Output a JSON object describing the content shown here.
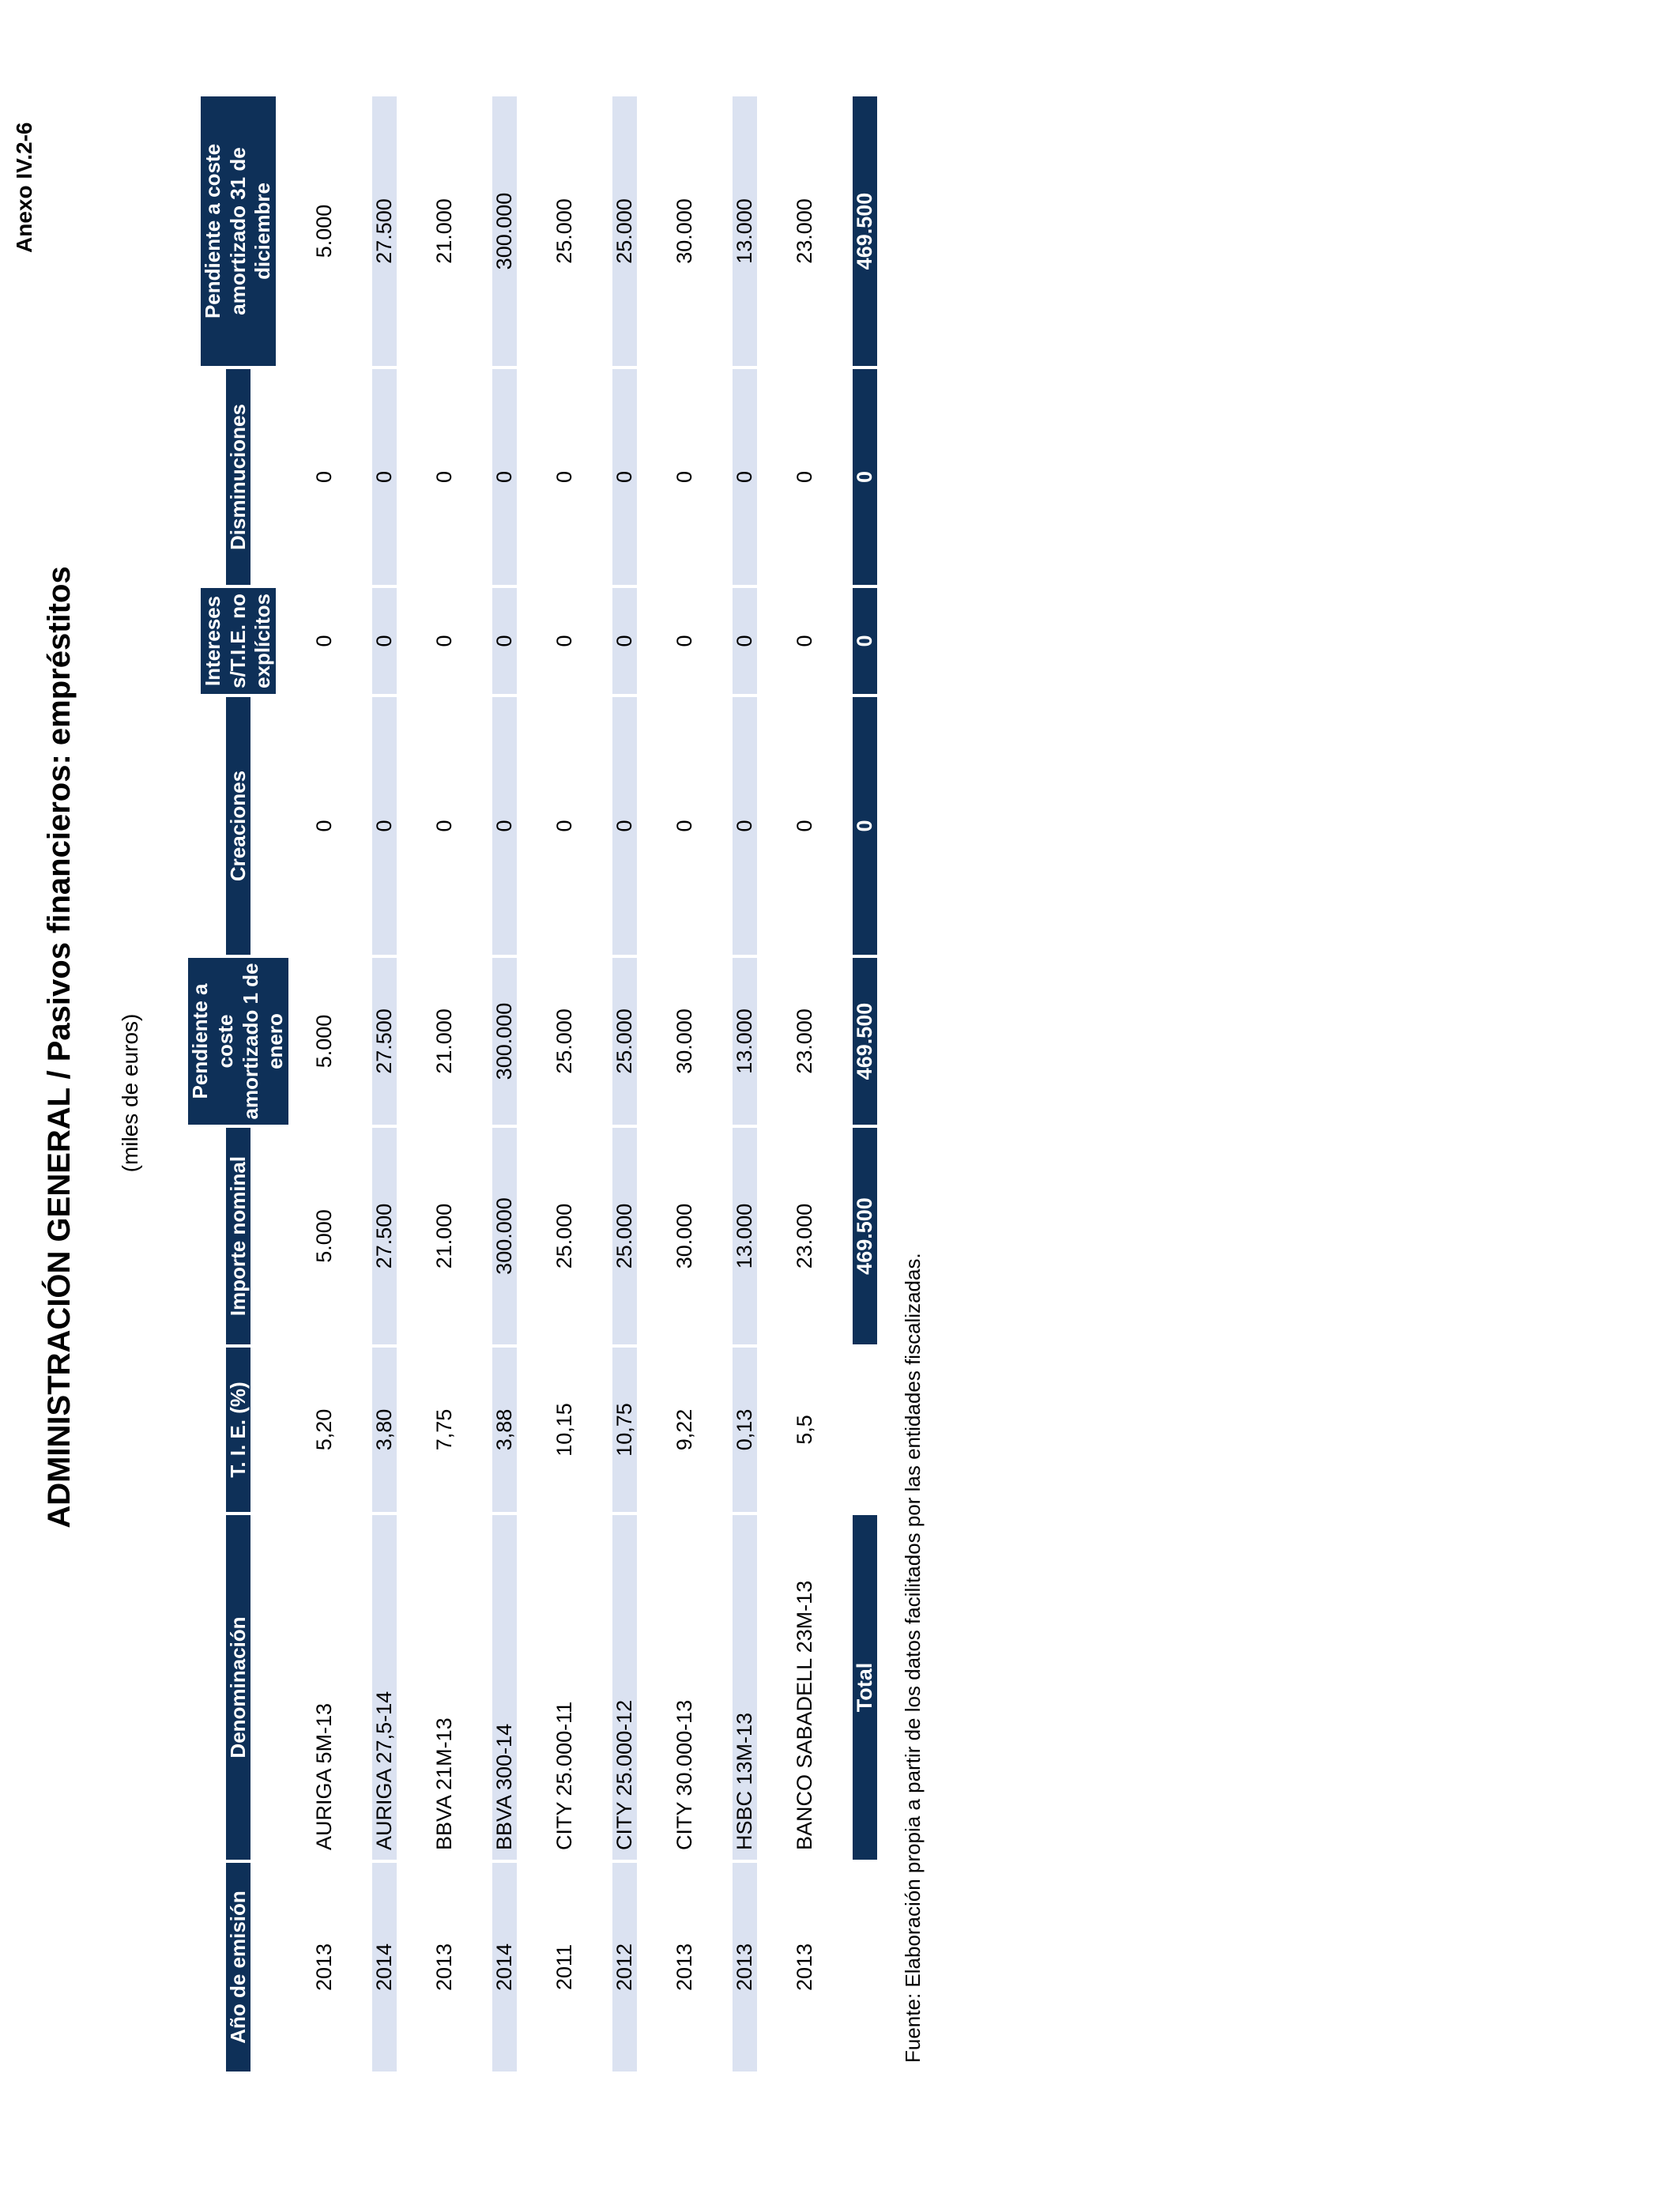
{
  "annex_label": "Anexo IV.2-6",
  "title": "ADMINISTRACIÓN GENERAL / Pasivos financieros: empréstitos",
  "subtitle": "(miles de euros)",
  "footer": "Fuente: Elaboración propia a partir de los datos facilitados por las entidades fiscalizadas.",
  "colors": {
    "header_background": "#0e3058",
    "header_text": "#ffffff",
    "row_stripe": "#dbe2f1",
    "body_text": "#000000",
    "page_background": "#ffffff"
  },
  "table": {
    "columns": [
      "Año de emisión",
      "Denominación",
      "T. I. E. (%)",
      "Importe nominal",
      "Pendiente a coste\namortizado 1 de\nenero",
      "Creaciones",
      "Intereses\ns/T.I.E. no\nexplícitos",
      "Disminuciones",
      "Pendiente a coste\namortizado 31 de\ndiciembre"
    ],
    "rows": [
      [
        "2013",
        "AURIGA 5M-13",
        "5,20",
        "5.000",
        "5.000",
        "0",
        "0",
        "0",
        "5.000"
      ],
      [
        "2014",
        "AURIGA 27,5-14",
        "3,80",
        "27.500",
        "27.500",
        "0",
        "0",
        "0",
        "27.500"
      ],
      [
        "2013",
        "BBVA 21M-13",
        "7,75",
        "21.000",
        "21.000",
        "0",
        "0",
        "0",
        "21.000"
      ],
      [
        "2014",
        "BBVA 300-14",
        "3,88",
        "300.000",
        "300.000",
        "0",
        "0",
        "0",
        "300.000"
      ],
      [
        "2011",
        "CITY 25.000-11",
        "10,15",
        "25.000",
        "25.000",
        "0",
        "0",
        "0",
        "25.000"
      ],
      [
        "2012",
        "CITY 25.000-12",
        "10,75",
        "25.000",
        "25.000",
        "0",
        "0",
        "0",
        "25.000"
      ],
      [
        "2013",
        "CITY 30.000-13",
        "9,22",
        "30.000",
        "30.000",
        "0",
        "0",
        "0",
        "30.000"
      ],
      [
        "2013",
        "HSBC 13M-13",
        "0,13",
        "13.000",
        "13.000",
        "0",
        "0",
        "0",
        "13.000"
      ],
      [
        "2013",
        "BANCO SABADELL 23M-13",
        "5,5",
        "23.000",
        "23.000",
        "0",
        "0",
        "0",
        "23.000"
      ]
    ],
    "total_row": [
      "",
      "Total",
      "",
      "469.500",
      "469.500",
      "0",
      "0",
      "0",
      "469.500"
    ]
  }
}
